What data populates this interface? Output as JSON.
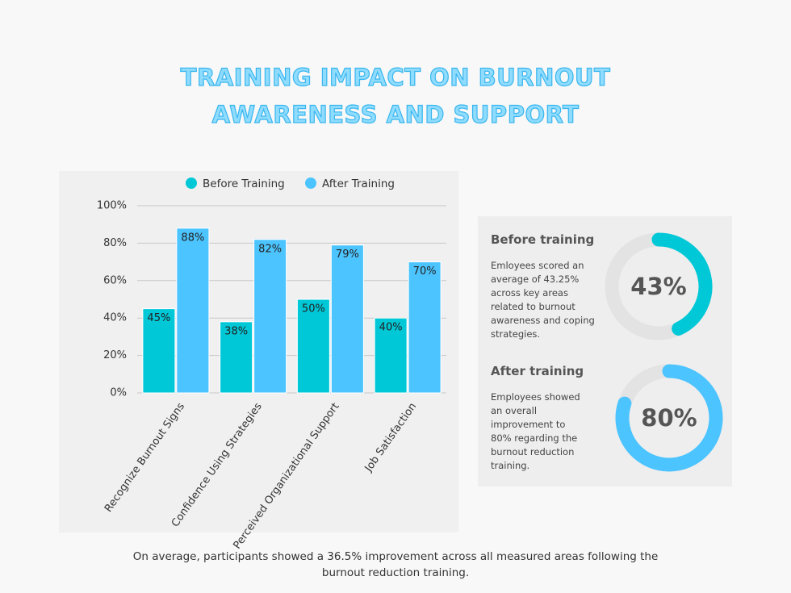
{
  "title": [
    "Training Impact on Burnout",
    "Awareness and Support"
  ],
  "footer": "On average, participants showed a 36.5% improvement across all measured areas following the burnout reduction training.",
  "chart_data": [
    {
      "type": "bar",
      "categories": [
        "Recognize Burnout Signs",
        "Confidence Using Strategies",
        "Perceived Organizational Support",
        "Job Satisfaction"
      ],
      "series": [
        {
          "name": "Before Training",
          "color": "#00c8d7",
          "values": [
            45,
            38,
            50,
            40
          ],
          "value_labels": [
            "45%",
            "38%",
            "50%",
            "40%"
          ]
        },
        {
          "name": "After Training",
          "color": "#4cc4ff",
          "values": [
            88,
            82,
            79,
            70
          ],
          "value_labels": [
            "88%",
            "82%",
            "79%",
            "70%"
          ]
        }
      ],
      "ylim": [
        0,
        100
      ],
      "yticks": [
        {
          "value": 0,
          "label": "0%"
        },
        {
          "value": 20,
          "label": "20%"
        },
        {
          "value": 40,
          "label": "40%"
        },
        {
          "value": 60,
          "label": "60%"
        },
        {
          "value": 80,
          "label": "80%"
        },
        {
          "value": 100,
          "label": "100%"
        }
      ],
      "grid": true,
      "legend": "top"
    },
    {
      "type": "donut",
      "title": "Before training",
      "description": "Emloyees scored an average of 43.25% across key areas related to burnout awareness and coping strategies.",
      "values": [
        43
      ],
      "value_labels": [
        "43%"
      ],
      "color": "#00c8d7"
    },
    {
      "type": "donut",
      "title": "After training",
      "description": "Employees showed an overall improvement to 80% regarding the burnout reduction training.",
      "values": [
        80
      ],
      "value_labels": [
        "80%"
      ],
      "color": "#4cc4ff"
    }
  ]
}
